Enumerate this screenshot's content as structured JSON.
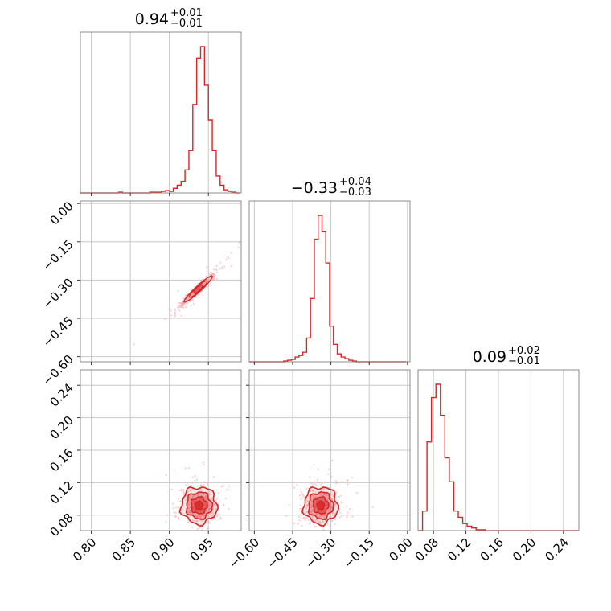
{
  "colors": {
    "series": "#d62728",
    "fill": "#e8949a",
    "scatter": "#f2a4a8",
    "frame": "#8c8c8c",
    "grid": "#c8c8c8"
  },
  "chart_data": {
    "type": "corner",
    "parameters": [
      {
        "name": "",
        "ticks": [
          "0.80",
          "0.85",
          "0.90",
          "0.95"
        ],
        "tick_values": [
          0.8,
          0.85,
          0.9,
          0.95
        ],
        "range": [
          0.786,
          0.992
        ],
        "summary": {
          "value": "0.94",
          "plus": "+0.01",
          "minus": "−0.01"
        }
      },
      {
        "name": "",
        "ticks": [
          "0.00",
          "−0.15",
          "−0.30",
          "−0.45",
          "−0.60"
        ],
        "tick_values": [
          0.0,
          -0.15,
          -0.3,
          -0.45,
          -0.6
        ],
        "range": [
          -0.62,
          0.01
        ],
        "summary": {
          "value": "−0.33",
          "plus": "+0.04",
          "minus": "−0.03"
        }
      },
      {
        "name": "",
        "ticks": [
          "0.24",
          "0.20",
          "0.16",
          "0.12",
          "0.08"
        ],
        "tick_values": [
          0.24,
          0.2,
          0.16,
          0.12,
          0.08
        ],
        "range": [
          0.061,
          0.259
        ],
        "summary": {
          "value": "0.09",
          "plus": "+0.02",
          "minus": "−0.01"
        }
      }
    ],
    "histograms": [
      {
        "parameter": 0,
        "bin_edges": [
          0.785,
          0.79,
          0.795,
          0.8,
          0.805,
          0.81,
          0.815,
          0.82,
          0.825,
          0.83,
          0.835,
          0.84,
          0.845,
          0.85,
          0.855,
          0.86,
          0.865,
          0.87,
          0.875,
          0.88,
          0.885,
          0.89,
          0.895,
          0.9,
          0.905,
          0.91,
          0.915,
          0.92,
          0.925,
          0.93,
          0.935,
          0.94,
          0.945,
          0.95,
          0.955,
          0.96,
          0.965,
          0.97,
          0.975,
          0.98,
          0.985,
          0.99
        ],
        "counts": [
          0,
          0,
          0,
          0,
          0,
          0,
          0,
          0,
          0,
          0,
          1,
          0,
          0,
          0,
          0,
          0,
          0,
          0,
          1,
          1,
          1,
          2,
          3,
          2,
          6,
          10,
          15,
          30,
          55,
          115,
          175,
          190,
          140,
          95,
          55,
          22,
          10,
          4,
          2,
          1,
          0
        ]
      },
      {
        "parameter": 1,
        "bin_edges": [
          -0.62,
          -0.605,
          -0.59,
          -0.575,
          -0.56,
          -0.545,
          -0.53,
          -0.515,
          -0.5,
          -0.485,
          -0.47,
          -0.455,
          -0.44,
          -0.425,
          -0.41,
          -0.395,
          -0.38,
          -0.365,
          -0.35,
          -0.335,
          -0.32,
          -0.305,
          -0.29,
          -0.275,
          -0.26,
          -0.245,
          -0.23,
          -0.215,
          -0.2,
          -0.185,
          -0.17,
          -0.155,
          -0.14,
          -0.125,
          -0.11,
          -0.095,
          -0.08,
          -0.065,
          -0.05,
          -0.035,
          -0.02,
          -0.005
        ],
        "counts": [
          0,
          0,
          0,
          0,
          0,
          0,
          0,
          0,
          0,
          1,
          2,
          3,
          6,
          8,
          12,
          30,
          80,
          155,
          185,
          165,
          125,
          45,
          22,
          10,
          6,
          4,
          2,
          1,
          0,
          0,
          0,
          0,
          0,
          0,
          0,
          0,
          0,
          0,
          0,
          0,
          0
        ]
      },
      {
        "parameter": 2,
        "bin_edges": [
          0.061,
          0.0665,
          0.072,
          0.0775,
          0.083,
          0.0885,
          0.094,
          0.0995,
          0.105,
          0.1105,
          0.116,
          0.1215,
          0.127,
          0.1325,
          0.138,
          0.1435,
          0.149,
          0.1545,
          0.16,
          0.1655,
          0.171,
          0.1765,
          0.182,
          0.1875,
          0.193,
          0.1985,
          0.204,
          0.2095,
          0.215,
          0.2205,
          0.226,
          0.2315,
          0.237,
          0.2425,
          0.248,
          0.2535,
          0.259
        ],
        "counts": [
          0,
          22,
          100,
          150,
          165,
          130,
          82,
          55,
          22,
          15,
          8,
          5,
          3,
          1,
          1,
          0,
          0,
          0,
          0,
          0,
          0,
          0,
          0,
          0,
          0,
          0,
          0,
          0,
          0,
          0,
          0,
          0,
          0,
          0,
          0,
          0
        ]
      }
    ],
    "joint_panels": [
      {
        "x_param": 0,
        "y_param": 1,
        "center": [
          0.937,
          -0.335
        ],
        "spread": [
          0.012,
          0.035
        ],
        "correlation": 0.97
      },
      {
        "x_param": 0,
        "y_param": 2,
        "center": [
          0.938,
          0.092
        ],
        "spread": [
          0.012,
          0.012
        ],
        "correlation": 0.0
      },
      {
        "x_param": 1,
        "y_param": 2,
        "center": [
          -0.34,
          0.092
        ],
        "spread": [
          0.035,
          0.012
        ],
        "correlation": 0.0
      }
    ],
    "grid": true,
    "legend": "none"
  }
}
